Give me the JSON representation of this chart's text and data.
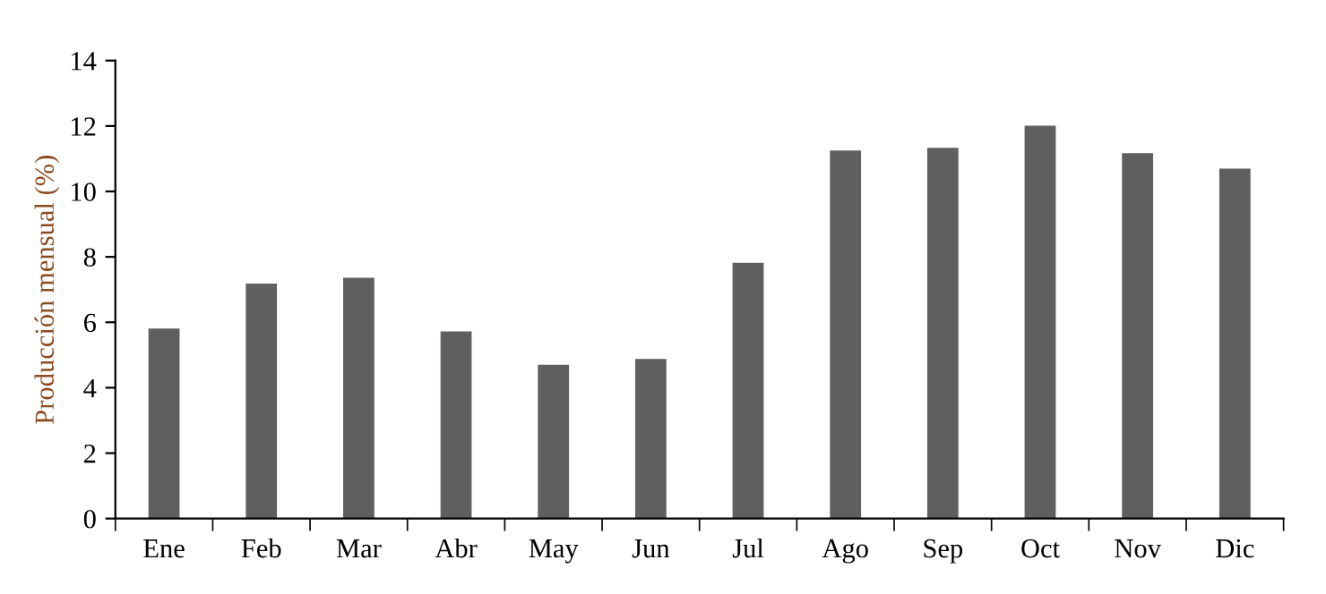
{
  "chart_data": {
    "type": "bar",
    "ylabel": "Producción mensual (%)",
    "categories": [
      "Ene",
      "Feb",
      "Mar",
      "Abr",
      "May",
      "Jun",
      "Jul",
      "Ago",
      "Sep",
      "Oct",
      "Nov",
      "Dic"
    ],
    "values": [
      5.81,
      7.18,
      7.36,
      5.72,
      4.7,
      4.88,
      7.82,
      11.25,
      11.33,
      12.01,
      11.17,
      10.7
    ],
    "color": "#5f5f5f",
    "ylim": [
      0,
      14
    ],
    "yticks": [
      0,
      2,
      4,
      6,
      8,
      10,
      12,
      14
    ],
    "grid": false,
    "legend": false
  }
}
